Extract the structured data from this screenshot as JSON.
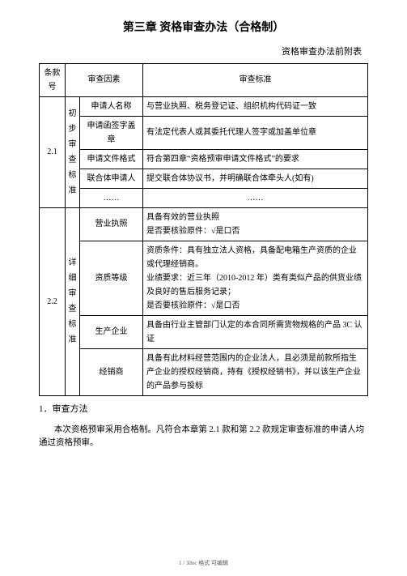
{
  "title": "第三章 资格审查办法（合格制）",
  "subtitle": "资格审查办法前附表",
  "headers": {
    "num": "条款号",
    "factor": "审查因素",
    "item": "",
    "std": "审查标准"
  },
  "section1": {
    "num": "2.1",
    "factor": "初步审查标准",
    "rows": [
      {
        "item": "申请人名称",
        "std": "与营业执照、税务登记证、组织机构代码证一致"
      },
      {
        "item": "申请函签字盖章",
        "std": "有法定代表人或其委托代理人签字或加盖单位章"
      },
      {
        "item": "申请文件格式",
        "std": "符合第四章“资格预审申请文件格式”的要求"
      },
      {
        "item": "联合体申请人",
        "std": "提交联合体协议书，并明确联合体牵头人(如有)"
      },
      {
        "item": "……",
        "std": "……"
      }
    ]
  },
  "section2": {
    "num": "2.2",
    "factor": "详细审查标准",
    "rows": [
      {
        "item": "营业执照",
        "std": "具备有效的营业执照\n是否要核验原件：√是口否"
      },
      {
        "item": "资质等级",
        "std": "资质条件：具有独立法人资格，具备配电箱生产资质的企业或代理经销商。\n业绩要求：近三年（2010-2012 年）类有类似产品的供货业绩及良好的售后服务记录；\n是否要核验原件：√是口否"
      },
      {
        "item": "生产企业",
        "std": "具备由行业主管部门认定的本合同所需货物规格的产品 3C 认证"
      },
      {
        "item": "经销商",
        "std": "具备有此材料经营范围内的企业法人，且必须是前款所指生产企业的授权经销商，持有《授权经销书》，并以该生产企业的产品参与投标"
      }
    ]
  },
  "para1": "1．审查方法",
  "para2": "本次资格预审采用合格制。凡符合本章第 2.1 款和第 2.2 款规定审查标准的申请人均通过资格预审。",
  "footer": "1 / 3doc 格式 可编辑"
}
